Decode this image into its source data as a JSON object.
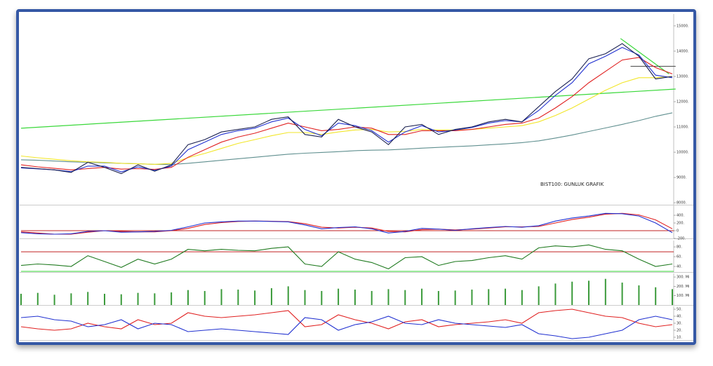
{
  "chart_data": [
    {
      "type": "line",
      "text": "BIST100: GUNLUK GRAFIK",
      "categories": [
        null,
        null,
        null,
        null,
        null,
        null,
        null,
        null,
        null,
        null,
        null,
        null,
        null,
        null,
        null,
        null,
        null,
        null,
        null,
        null,
        null,
        null,
        null,
        null,
        null,
        null,
        null,
        null,
        null,
        null,
        null,
        null,
        null,
        null,
        null,
        null,
        null,
        null,
        null,
        null
      ],
      "series": [
        {
          "color": "#5f8f8f",
          "values": [
            9700,
            9680,
            9650,
            9620,
            9600,
            9580,
            9560,
            9540,
            9520,
            9510,
            9560,
            9620,
            9680,
            9740,
            9800,
            9860,
            9920,
            9960,
            9990,
            10020,
            10060,
            10080,
            10090,
            10120,
            10160,
            10190,
            10220,
            10250,
            10290,
            10330,
            10380,
            10450,
            10560,
            10680,
            10820,
            10960,
            11100,
            11250,
            11420,
            11560
          ]
        },
        {
          "color": "#f2e628",
          "values": [
            9850,
            9780,
            9720,
            9660,
            9620,
            9600,
            9560,
            9540,
            9520,
            9560,
            9780,
            9950,
            10150,
            10350,
            10500,
            10650,
            10780,
            10780,
            10700,
            10800,
            10880,
            10900,
            10800,
            10820,
            10900,
            10880,
            10880,
            10900,
            10950,
            11000,
            11050,
            11200,
            11450,
            11750,
            12100,
            12450,
            12750,
            12950,
            12950,
            13000
          ]
        },
        {
          "color": "#e02020",
          "values": [
            9500,
            9420,
            9360,
            9300,
            9350,
            9400,
            9330,
            9350,
            9320,
            9400,
            9800,
            10100,
            10400,
            10600,
            10750,
            10950,
            11150,
            11000,
            10850,
            10900,
            11000,
            10950,
            10700,
            10700,
            10850,
            10850,
            10850,
            10900,
            11000,
            11100,
            11150,
            11350,
            11750,
            12200,
            12750,
            13200,
            13650,
            13750,
            13350,
            13100
          ]
        },
        {
          "color": "#2030d0",
          "values": [
            9380,
            9340,
            9300,
            9230,
            9450,
            9450,
            9220,
            9420,
            9280,
            9450,
            10100,
            10400,
            10700,
            10850,
            10950,
            11200,
            11350,
            10900,
            10650,
            11150,
            11050,
            10850,
            10400,
            10800,
            11050,
            10800,
            10880,
            10980,
            11150,
            11250,
            11200,
            11650,
            12250,
            12750,
            13500,
            13800,
            14150,
            13850,
            13050,
            12950
          ]
        },
        {
          "color": "#1a2050",
          "values": [
            9400,
            9350,
            9300,
            9200,
            9600,
            9400,
            9150,
            9500,
            9250,
            9500,
            10300,
            10500,
            10800,
            10900,
            11000,
            11300,
            11400,
            10700,
            10600,
            11300,
            11000,
            10800,
            10300,
            11000,
            11100,
            10700,
            10900,
            11000,
            11200,
            11300,
            11200,
            11800,
            12400,
            12900,
            13700,
            13900,
            14300,
            13800,
            12900,
            13000
          ]
        }
      ],
      "trend_lines": [
        {
          "color": "#3ad83a",
          "x": [
            0,
            39.2
          ],
          "values": [
            10950,
            12500
          ]
        },
        {
          "color": "#3ad83a",
          "x": [
            35.9,
            38.8
          ],
          "values": [
            14500,
            13100
          ]
        },
        {
          "color": "#555555",
          "x": [
            36.5,
            39.2
          ],
          "values": [
            13400,
            13400
          ]
        }
      ],
      "ylim": [
        7920,
        15470
      ],
      "yticks": [
        {
          "value": 15000,
          "label": "15000."
        },
        {
          "value": 14000,
          "label": "14000."
        },
        {
          "value": 13000,
          "label": "13000."
        },
        {
          "value": 12000,
          "label": "12000."
        },
        {
          "value": 11000,
          "label": "11000."
        },
        {
          "value": 10000,
          "label": "10000."
        },
        {
          "value": 9000,
          "label": "9000."
        },
        {
          "value": 8000,
          "label": "8000."
        }
      ]
    },
    {
      "type": "line",
      "series": [
        {
          "color": "#e02020",
          "values": [
            -30,
            -60,
            -90,
            -90,
            -40,
            0,
            -20,
            -30,
            -30,
            0,
            60,
            160,
            210,
            240,
            250,
            245,
            235,
            180,
            90,
            70,
            90,
            70,
            -20,
            -30,
            30,
            40,
            20,
            40,
            70,
            100,
            100,
            110,
            200,
            290,
            350,
            430,
            450,
            410,
            280,
            50
          ]
        },
        {
          "color": "#2030d0",
          "values": [
            -50,
            -80,
            -90,
            -80,
            -20,
            0,
            -40,
            -30,
            -20,
            10,
            100,
            200,
            230,
            250,
            250,
            240,
            230,
            150,
            50,
            80,
            100,
            50,
            -60,
            -20,
            60,
            40,
            10,
            50,
            80,
            110,
            90,
            130,
            250,
            330,
            380,
            450,
            440,
            380,
            200,
            -50
          ]
        }
      ],
      "reference_lines": [
        {
          "value": 0,
          "color": "#c02020"
        }
      ],
      "ylim": [
        -200,
        655
      ],
      "yticks": [
        {
          "value": 400,
          "label": "400."
        },
        {
          "value": 200,
          "label": "200."
        },
        0,
        {
          "value": -200,
          "label": "-200."
        }
      ]
    },
    {
      "type": "line",
      "series": [
        {
          "color": "#1f7a1f",
          "values": [
            42,
            45,
            43,
            40,
            62,
            50,
            38,
            55,
            45,
            55,
            75,
            72,
            75,
            73,
            72,
            77,
            80,
            45,
            40,
            70,
            55,
            48,
            35,
            58,
            60,
            42,
            50,
            52,
            58,
            62,
            55,
            78,
            82,
            80,
            84,
            75,
            72,
            55,
            40,
            45
          ]
        }
      ],
      "reference_lines": [
        {
          "value": 70,
          "color": "#c02020"
        },
        {
          "value": 30,
          "color": "#3ad83a"
        }
      ],
      "ylim": [
        28.6,
        93
      ],
      "yticks": [
        {
          "value": 80,
          "label": "80."
        },
        {
          "value": 60,
          "label": "60."
        },
        {
          "value": 40,
          "label": "40."
        }
      ]
    },
    {
      "type": "bar",
      "color": "#3a9a3a",
      "values": [
        120,
        130,
        110,
        125,
        140,
        120,
        115,
        130,
        125,
        135,
        160,
        150,
        170,
        165,
        155,
        180,
        200,
        160,
        150,
        175,
        165,
        150,
        170,
        160,
        175,
        150,
        155,
        165,
        170,
        175,
        160,
        200,
        230,
        250,
        260,
        280,
        240,
        210,
        190,
        170
      ],
      "ylim": [
        0,
        338
      ],
      "yticks": [
        {
          "value": 300,
          "label": "300. Mi"
        },
        {
          "value": 200,
          "label": "200. Mi"
        },
        {
          "value": 100,
          "label": "100. Mi"
        }
      ]
    },
    {
      "type": "line",
      "series": [
        {
          "color": "#e02020",
          "values": [
            25,
            22,
            20,
            22,
            30,
            25,
            22,
            35,
            28,
            30,
            45,
            40,
            38,
            40,
            42,
            45,
            48,
            25,
            28,
            42,
            35,
            30,
            22,
            32,
            35,
            25,
            28,
            30,
            32,
            35,
            30,
            45,
            48,
            50,
            45,
            40,
            38,
            30,
            25,
            28
          ]
        },
        {
          "color": "#2030d0",
          "values": [
            38,
            40,
            35,
            33,
            25,
            28,
            35,
            22,
            30,
            28,
            18,
            20,
            22,
            20,
            18,
            16,
            14,
            38,
            35,
            20,
            28,
            32,
            40,
            30,
            28,
            35,
            30,
            28,
            26,
            24,
            28,
            15,
            12,
            8,
            10,
            15,
            20,
            35,
            40,
            35
          ]
        }
      ],
      "ylim": [
        6,
        54
      ],
      "yticks": [
        {
          "value": 50,
          "label": "50."
        },
        {
          "value": 40,
          "label": "40."
        },
        {
          "value": 30,
          "label": "30."
        },
        {
          "value": 20,
          "label": "20."
        },
        {
          "value": 10,
          "label": "10."
        }
      ]
    }
  ]
}
